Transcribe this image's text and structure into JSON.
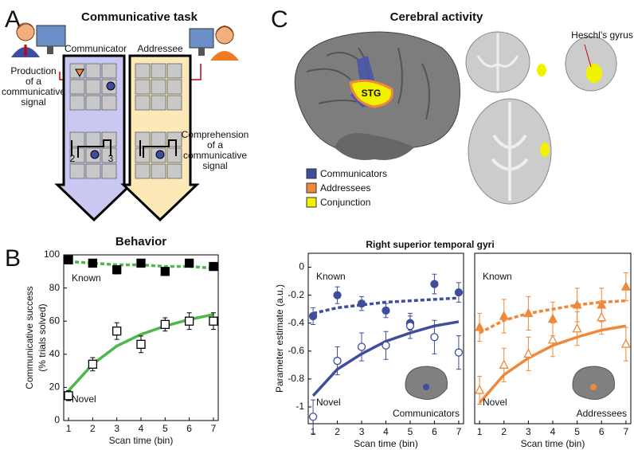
{
  "panel_a": {
    "label": "A",
    "title": "Communicative task",
    "communicator": "Communicator",
    "addressee": "Addressee",
    "production": [
      "Production",
      "of a",
      "communicative",
      "signal"
    ],
    "comprehension": [
      "Comprehension",
      "of a",
      "communicative",
      "signal"
    ],
    "steps": [
      "2",
      "3"
    ]
  },
  "panel_b": {
    "label": "B"
  },
  "panel_c": {
    "label": "C",
    "title": "Cerebral activity",
    "stg": "STG",
    "heschl": "Heschl's gyrus",
    "legend": [
      {
        "name": "Communicators",
        "color": "#3f4d9c"
      },
      {
        "name": "Addressees",
        "color": "#f0883a"
      },
      {
        "name": "Conjunction",
        "color": "#f2f200"
      }
    ]
  },
  "chart_data": [
    {
      "type": "scatter",
      "title": "Behavior",
      "x_label": "Scan time (bin)",
      "y_label": [
        "Communicative success",
        "(% trials solved)"
      ],
      "x": [
        1,
        2,
        3,
        4,
        5,
        6,
        7
      ],
      "xlim": [
        0.8,
        7.2
      ],
      "xticks": [
        1,
        2,
        3,
        4,
        5,
        6,
        7
      ],
      "ylim": [
        0,
        100
      ],
      "yticks": [
        0,
        20,
        40,
        60,
        80,
        100
      ],
      "fit_color": "#4cb848",
      "series": [
        {
          "name": "Known",
          "color": "#000000",
          "marker": "square",
          "filled": true,
          "fit_dashed": true,
          "values": [
            97,
            95,
            91,
            95,
            90,
            95,
            93
          ],
          "errors": [
            1.5,
            2,
            2.5,
            1.5,
            2.5,
            1.5,
            1.5
          ],
          "fit": [
            96,
            95,
            94,
            94,
            93,
            93,
            92
          ]
        },
        {
          "name": "Novel",
          "color": "#000000",
          "marker": "square",
          "filled": false,
          "fit_dashed": false,
          "values": [
            15,
            34,
            54,
            46,
            58,
            60,
            60
          ],
          "errors": [
            3,
            4,
            5,
            5,
            4,
            5,
            5
          ],
          "fit": [
            18,
            34,
            45,
            52,
            57,
            61,
            64
          ]
        }
      ]
    },
    {
      "type": "scatter",
      "title": "Right superior temporal gyri",
      "label": "Communicators",
      "x_label": "Scan time (bin)",
      "y_label": [
        "Parameter estimate (a.u.)"
      ],
      "x": [
        1,
        2,
        3,
        4,
        5,
        6,
        7
      ],
      "xlim": [
        0.8,
        7.2
      ],
      "xticks": [
        1,
        2,
        3,
        4,
        5,
        6,
        7
      ],
      "ylim": [
        -1.12,
        0.1
      ],
      "yticks": [
        -1,
        -0.8,
        -0.6,
        -0.4,
        -0.2,
        0
      ],
      "fit_color": "#3f4d9c",
      "series": [
        {
          "name": "Known",
          "color": "#3f4d9c",
          "marker": "circle",
          "filled": true,
          "fit_dashed": true,
          "values": [
            -0.35,
            -0.2,
            -0.26,
            -0.31,
            -0.4,
            -0.12,
            -0.18
          ],
          "errors": [
            0.06,
            0.06,
            0.05,
            0.05,
            0.05,
            0.07,
            0.07
          ],
          "fit": [
            -0.33,
            -0.29,
            -0.27,
            -0.25,
            -0.24,
            -0.23,
            -0.22
          ]
        },
        {
          "name": "Novel",
          "color": "#3f4d9c",
          "marker": "circle",
          "filled": false,
          "fit_dashed": false,
          "values": [
            -1.07,
            -0.67,
            -0.57,
            -0.56,
            -0.42,
            -0.5,
            -0.61
          ],
          "errors": [
            0.12,
            0.1,
            0.1,
            0.1,
            0.09,
            0.12,
            0.12
          ],
          "fit": [
            -0.92,
            -0.73,
            -0.62,
            -0.53,
            -0.47,
            -0.42,
            -0.39
          ]
        }
      ]
    },
    {
      "type": "scatter",
      "label": "Addressees",
      "x_label": "Scan time (bin)",
      "x": [
        1,
        2,
        3,
        4,
        5,
        6,
        7
      ],
      "xlim": [
        0.8,
        7.2
      ],
      "xticks": [
        1,
        2,
        3,
        4,
        5,
        6,
        7
      ],
      "ylim": [
        -1.12,
        0.1
      ],
      "fit_color": "#f0883a",
      "known_label": "Known",
      "series": [
        {
          "name": "Known",
          "color": "#f0883a",
          "marker": "triangle",
          "filled": true,
          "fit_dashed": true,
          "values": [
            -0.43,
            -0.35,
            -0.33,
            -0.37,
            -0.27,
            -0.27,
            -0.14
          ],
          "errors": [
            0.1,
            0.12,
            0.12,
            0.12,
            0.12,
            0.12,
            0.1
          ],
          "fit": [
            -0.47,
            -0.38,
            -0.33,
            -0.3,
            -0.27,
            -0.25,
            -0.24
          ]
        },
        {
          "name": "Novel",
          "color": "#f0883a",
          "marker": "triangle",
          "filled": false,
          "fit_dashed": false,
          "values": [
            -0.88,
            -0.7,
            -0.62,
            -0.52,
            -0.44,
            -0.36,
            -0.55
          ],
          "errors": [
            0.1,
            0.12,
            0.12,
            0.12,
            0.12,
            0.12,
            0.12
          ],
          "fit": [
            -0.97,
            -0.77,
            -0.65,
            -0.56,
            -0.5,
            -0.45,
            -0.42
          ]
        }
      ]
    }
  ]
}
